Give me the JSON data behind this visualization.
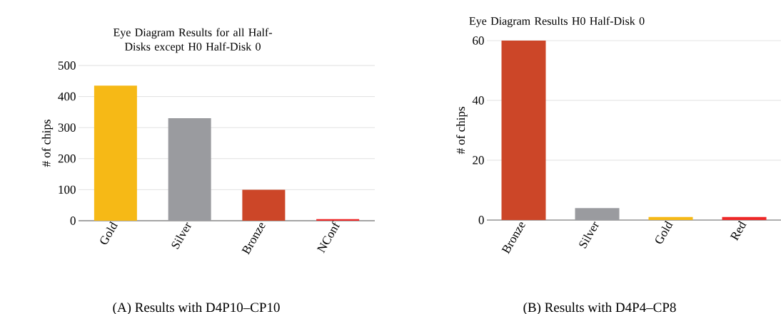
{
  "chart_data": [
    {
      "type": "bar",
      "title": "Eye Diagram Results for all Half-Disks except H0 Half-Disk 0",
      "ylabel": "# of chips",
      "categories": [
        "Gold",
        "Silver",
        "Bronze",
        "NConf"
      ],
      "values": [
        435,
        330,
        100,
        5
      ],
      "colors": [
        "#f6b916",
        "#9a9b9f",
        "#cc4628",
        "#ee2828"
      ],
      "ylim": [
        0,
        500
      ],
      "yticks": [
        0,
        100,
        200,
        300,
        400,
        500
      ],
      "grid": "y",
      "annotations": [
        "(A) Results with D4P10–CP10"
      ]
    },
    {
      "type": "bar",
      "title": "Eye Diagram Results  H0 Half-Disk 0",
      "ylabel": "# of chips",
      "categories": [
        "Bronze",
        "Silver",
        "Gold",
        "Red"
      ],
      "values": [
        60,
        4,
        1,
        1
      ],
      "colors": [
        "#cc4628",
        "#9a9b9f",
        "#f6b916",
        "#ee2828"
      ],
      "ylim": [
        0,
        60
      ],
      "yticks": [
        0,
        20,
        40,
        60
      ],
      "grid": "y",
      "annotations": [
        "(B) Results with D4P4–CP8"
      ]
    }
  ]
}
